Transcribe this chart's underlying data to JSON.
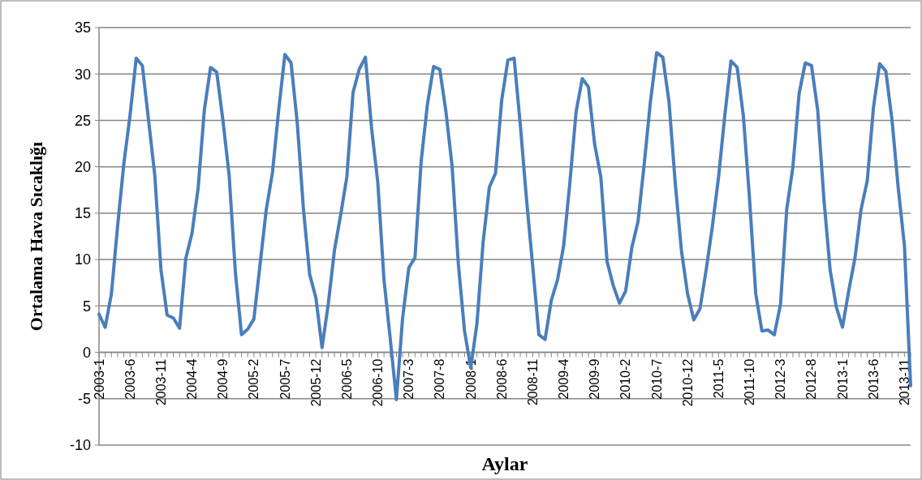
{
  "chart_data": {
    "type": "line",
    "xlabel": "Aylar",
    "ylabel": "Ortalama Hava Sıcaklığı",
    "categories": [
      "2003-1",
      null,
      null,
      null,
      null,
      "2003-6",
      null,
      null,
      null,
      null,
      "2003-11",
      null,
      null,
      null,
      null,
      "2004-4",
      null,
      null,
      null,
      null,
      "2004-9",
      null,
      null,
      null,
      null,
      "2005-2",
      null,
      null,
      null,
      null,
      "2005-7",
      null,
      null,
      null,
      null,
      "2005-12",
      null,
      null,
      null,
      null,
      "2006-5",
      null,
      null,
      null,
      null,
      "2006-10",
      null,
      null,
      null,
      null,
      "2007-3",
      null,
      null,
      null,
      null,
      "2007-8",
      null,
      null,
      null,
      null,
      "2008-1",
      null,
      null,
      null,
      null,
      "2008-6",
      null,
      null,
      null,
      null,
      "2008-11",
      null,
      null,
      null,
      null,
      "2009-4",
      null,
      null,
      null,
      null,
      "2009-9",
      null,
      null,
      null,
      null,
      "2010-2",
      null,
      null,
      null,
      null,
      "2010-7",
      null,
      null,
      null,
      null,
      "2010-12",
      null,
      null,
      null,
      null,
      "2011-5",
      null,
      null,
      null,
      null,
      "2011-10",
      null,
      null,
      null,
      null,
      "2012-3",
      null,
      null,
      null,
      null,
      "2012-8",
      null,
      null,
      null,
      null,
      "2013-1",
      null,
      null,
      null,
      null,
      "2013-6",
      null,
      null,
      null,
      null,
      "2013-11",
      null
    ],
    "series": [
      {
        "color": "#4a7ebb",
        "values": [
          4.1,
          2.7,
          6.3,
          13.6,
          20.3,
          25.5,
          31.7,
          30.9,
          25,
          19.1,
          8.9,
          4.0,
          3.7,
          2.6,
          10.1,
          12.8,
          17.7,
          26.1,
          30.7,
          30.2,
          25,
          19.1,
          8.7,
          1.9,
          2.5,
          3.6,
          9.5,
          15.4,
          19.4,
          26.1,
          32.1,
          31.2,
          24.7,
          15.4,
          8.4,
          5.9,
          0.5,
          5.2,
          11,
          14.8,
          18.9,
          28,
          30.5,
          31.8,
          24.1,
          18.3,
          7.8,
          1.5,
          -5.1,
          3.7,
          9.1,
          10.2,
          20.6,
          26.7,
          30.8,
          30.5,
          25.9,
          20,
          9.5,
          2.3,
          -1.7,
          3.1,
          11.9,
          17.8,
          19.3,
          27.2,
          31.5,
          31.7,
          24.5,
          16.5,
          9.3,
          1.9,
          1.4,
          5.6,
          7.8,
          11.5,
          18.3,
          25.9,
          29.5,
          28.6,
          22.4,
          18.9,
          9.8,
          7.2,
          5.3,
          6.6,
          11.3,
          14.1,
          20.3,
          27,
          32.3,
          31.8,
          27,
          18.3,
          11,
          6.3,
          3.5,
          4.7,
          8.9,
          13.6,
          18.9,
          25.5,
          31.4,
          30.7,
          25.5,
          16.5,
          6.3,
          2.3,
          2.4,
          1.9,
          5.2,
          15.4,
          20,
          27.9,
          31.2,
          30.9,
          26.1,
          16.5,
          8.9,
          4.9,
          2.7,
          6.6,
          10.1,
          15.4,
          18.5,
          26.4,
          31.1,
          30.3,
          25,
          17.7,
          11.5,
          -3.6
        ]
      }
    ],
    "ylim": [
      -10,
      35
    ],
    "yticks": [
      -10,
      -5,
      0,
      5,
      10,
      15,
      20,
      25,
      30,
      35
    ],
    "grid": "y",
    "line_style": "solid",
    "marker": "none"
  }
}
